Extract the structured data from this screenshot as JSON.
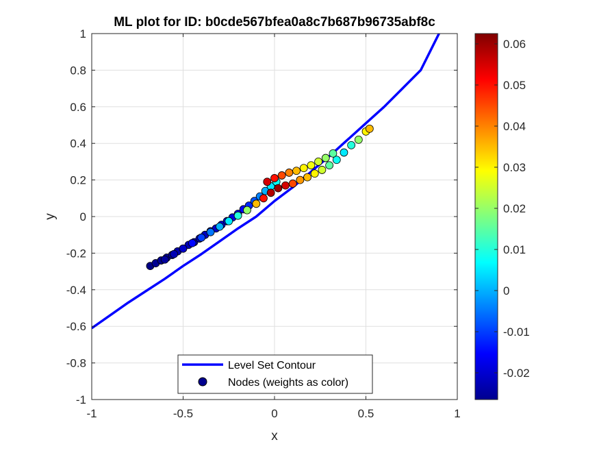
{
  "chart_data": {
    "type": "scatter",
    "title": "ML plot for ID: b0cde567bfea0a8c7b687b96735abf8c",
    "xlabel": "x",
    "ylabel": "y",
    "xlim": [
      -1,
      1
    ],
    "ylim": [
      -1,
      1
    ],
    "grid": true,
    "x_ticks": [
      "-1",
      "-0.5",
      "0",
      "0.5",
      "1"
    ],
    "y_ticks": [
      "-1",
      "-0.8",
      "-0.6",
      "-0.4",
      "-0.2",
      "0",
      "0.2",
      "0.4",
      "0.6",
      "0.8",
      "1"
    ],
    "legend": {
      "placement": "bottom-center",
      "entries": [
        "Level Set Contour",
        "Nodes (weights as color)"
      ]
    },
    "contour": {
      "name": "Level Set Contour",
      "color": "#0000ff",
      "x": [
        -1,
        -0.9,
        -0.8,
        -0.7,
        -0.6,
        -0.5,
        -0.4,
        -0.3,
        -0.2,
        -0.1,
        0,
        0.1,
        0.2,
        0.3,
        0.4,
        0.5,
        0.6,
        0.7,
        0.8,
        0.9
      ],
      "y": [
        -0.61,
        -0.54,
        -0.47,
        -0.405,
        -0.34,
        -0.27,
        -0.205,
        -0.135,
        -0.065,
        0.0,
        0.085,
        0.16,
        0.245,
        0.33,
        0.42,
        0.51,
        0.6,
        0.7,
        0.8,
        1.0
      ]
    },
    "nodes": {
      "name": "Nodes (weights as color)",
      "x": [
        -0.68,
        -0.65,
        -0.62,
        -0.59,
        -0.56,
        -0.53,
        -0.5,
        -0.47,
        -0.44,
        -0.41,
        -0.38,
        -0.35,
        -0.32,
        -0.29,
        -0.26,
        -0.23,
        -0.2,
        -0.17,
        -0.14,
        -0.11,
        -0.08,
        -0.05,
        -0.02,
        0.01,
        -0.6,
        -0.55,
        -0.5,
        -0.45,
        -0.4,
        -0.35,
        -0.3,
        -0.25,
        -0.2,
        -0.15,
        -0.1,
        -0.06,
        -0.02,
        0.02,
        0.06,
        0.1,
        0.14,
        0.18,
        0.22,
        0.26,
        0.3,
        0.34,
        0.38,
        0.42,
        0.46,
        0.5,
        0.52,
        -0.04,
        0.0,
        0.04,
        0.08,
        0.12,
        0.16,
        0.2,
        0.24,
        0.28,
        0.32
      ],
      "y": [
        -0.27,
        -0.255,
        -0.24,
        -0.225,
        -0.21,
        -0.19,
        -0.175,
        -0.155,
        -0.14,
        -0.12,
        -0.1,
        -0.08,
        -0.065,
        -0.045,
        -0.025,
        -0.005,
        0.015,
        0.04,
        0.06,
        0.085,
        0.11,
        0.14,
        0.165,
        0.19,
        -0.235,
        -0.205,
        -0.175,
        -0.145,
        -0.115,
        -0.085,
        -0.055,
        -0.025,
        0.005,
        0.035,
        0.07,
        0.1,
        0.13,
        0.155,
        0.17,
        0.18,
        0.2,
        0.215,
        0.235,
        0.255,
        0.28,
        0.31,
        0.35,
        0.39,
        0.42,
        0.465,
        0.48,
        0.19,
        0.21,
        0.225,
        0.24,
        0.25,
        0.265,
        0.28,
        0.3,
        0.32,
        0.345
      ],
      "weights": [
        -0.026,
        -0.025,
        -0.025,
        -0.024,
        -0.024,
        -0.023,
        -0.023,
        -0.022,
        -0.022,
        -0.021,
        -0.021,
        -0.02,
        -0.02,
        -0.019,
        -0.019,
        -0.018,
        -0.017,
        -0.015,
        -0.012,
        -0.008,
        -0.004,
        0.0,
        0.005,
        0.008,
        -0.024,
        -0.022,
        -0.02,
        -0.015,
        -0.01,
        -0.005,
        0.0,
        0.005,
        0.01,
        0.02,
        0.035,
        0.05,
        0.058,
        0.06,
        0.055,
        0.045,
        0.038,
        0.035,
        0.03,
        0.025,
        0.015,
        0.008,
        0.005,
        0.01,
        0.02,
        0.03,
        0.035,
        0.055,
        0.05,
        0.045,
        0.04,
        0.035,
        0.03,
        0.028,
        0.025,
        0.02,
        0.015
      ]
    },
    "colorbar": {
      "colormap": "jet",
      "clim": [
        -0.0265,
        0.0625
      ],
      "ticks": [
        -0.02,
        -0.01,
        0,
        0.01,
        0.02,
        0.03,
        0.04,
        0.05,
        0.06
      ],
      "tick_labels": [
        "-0.02",
        "-0.01",
        "0",
        "0.01",
        "0.02",
        "0.03",
        "0.04",
        "0.05",
        "0.06"
      ]
    }
  }
}
